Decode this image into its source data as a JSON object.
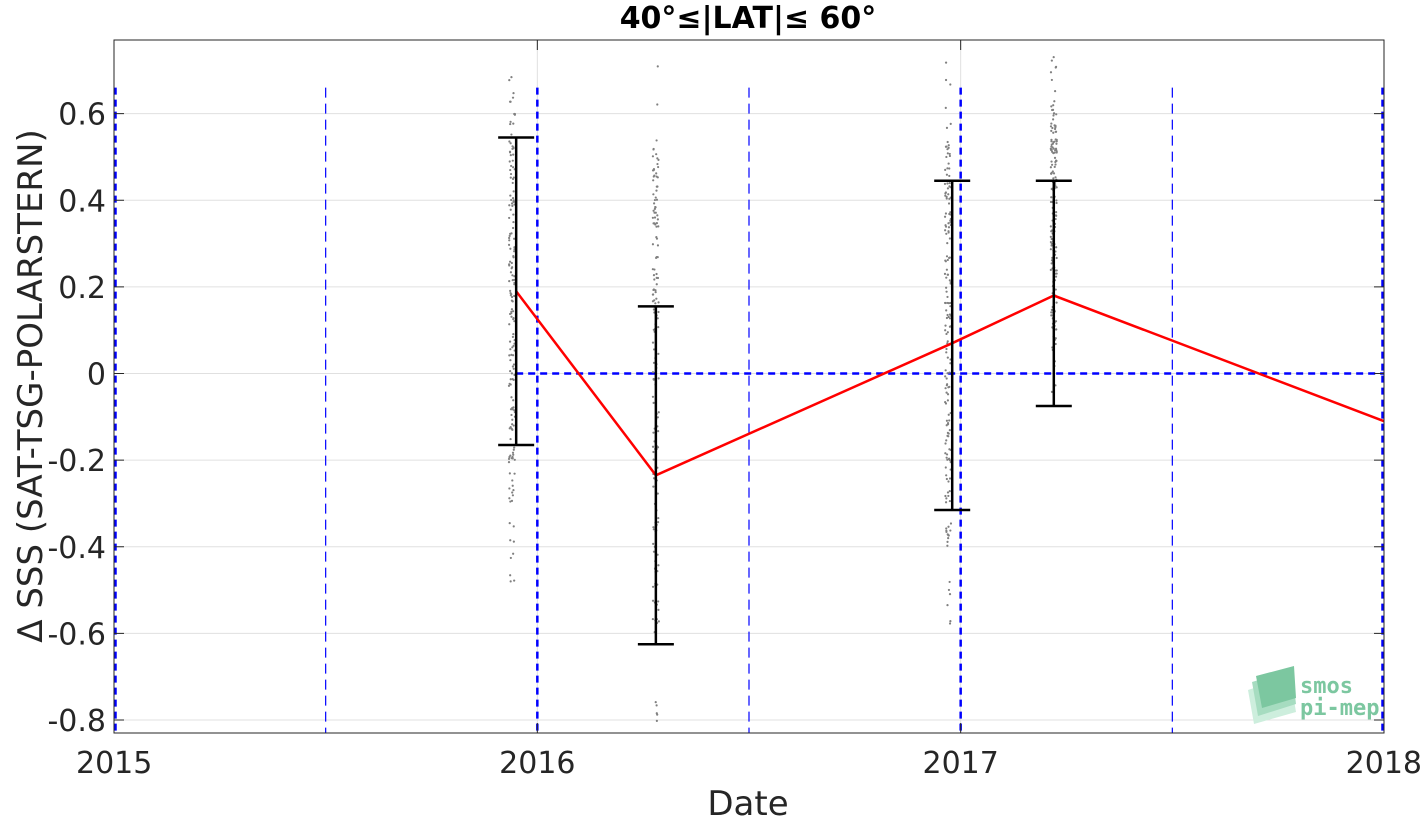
{
  "chart_data": {
    "type": "line",
    "title": "40°≤|LAT|≤ 60°",
    "xlabel": "Date",
    "ylabel": "Δ SSS (SAT-TSG-POLARSTERN)",
    "xlim": [
      2015.0,
      2018.0
    ],
    "ylim": [
      -0.83,
      0.77
    ],
    "x_ticks": [
      "2015",
      "2016",
      "2017",
      "2018"
    ],
    "y_ticks": [
      "0.6",
      "0.4",
      "0.2",
      "0",
      "-0.2",
      "-0.4",
      "-0.6",
      "-0.8"
    ],
    "grid": true,
    "series": [
      {
        "kind": "mean_line",
        "color": "#ff0000",
        "x": [
          2015.95,
          2016.28,
          2016.98,
          2017.22,
          2018.0
        ],
        "y": [
          0.19,
          -0.235,
          0.07,
          0.18,
          -0.11
        ]
      }
    ],
    "error_bars": {
      "color": "#000000",
      "x": [
        2015.95,
        2016.28,
        2016.98,
        2017.22
      ],
      "center": [
        0.19,
        -0.235,
        0.065,
        0.18
      ],
      "low": [
        -0.165,
        -0.625,
        -0.315,
        -0.075
      ],
      "high": [
        0.545,
        0.155,
        0.445,
        0.445
      ]
    },
    "scatter_clusters": {
      "color": "#808080",
      "clusters": [
        {
          "x": 2015.94,
          "ymin": -0.48,
          "ymax": 0.74
        },
        {
          "x": 2016.28,
          "ymin": -0.82,
          "ymax": 0.76
        },
        {
          "x": 2016.97,
          "ymin": -0.59,
          "ymax": 0.74
        },
        {
          "x": 2017.22,
          "ymin": -0.06,
          "ymax": 0.74
        }
      ]
    },
    "reference_lines": {
      "color": "#0000ff",
      "zero_line": {
        "y": 0,
        "x_from": 2015.95,
        "x_to": 2018.0
      },
      "year_lines": [
        2015.0,
        2016.0,
        2017.0,
        2018.0
      ],
      "half_year_lines": [
        2015.5,
        2016.5,
        2017.5
      ]
    },
    "watermark": {
      "line1": "smos",
      "line2": "pi-mep",
      "color": "#7cc7a0"
    }
  }
}
